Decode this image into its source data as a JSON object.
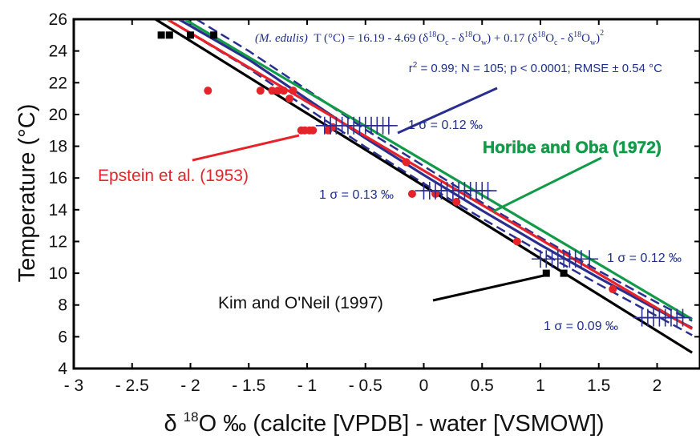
{
  "chart_data": {
    "type": "scatter",
    "xlabel": "δ 18O ‰ (calcite [VPDB] - water [VSMOW])",
    "ylabel": "Temperature (°C)",
    "xlim": [
      -3,
      2.3
    ],
    "ylim": [
      4,
      26
    ],
    "xticks": [
      -3,
      -2.5,
      -2,
      -1.5,
      -1,
      -0.5,
      0,
      0.5,
      1,
      1.5,
      2
    ],
    "xtick_labels": [
      "- 3",
      "- 2.5",
      "- 2",
      "- 1.5",
      "- 1",
      "- 0.5",
      "0",
      "0.5",
      "1",
      "1.5",
      "2"
    ],
    "yticks": [
      4,
      6,
      8,
      10,
      12,
      14,
      16,
      18,
      20,
      22,
      24,
      26
    ],
    "ytick_labels": [
      "4",
      "6",
      "8",
      "10",
      "12",
      "14",
      "16",
      "18",
      "20",
      "22",
      "24",
      "26"
    ],
    "grid": false,
    "series": [
      {
        "name": "M. edulis",
        "kind": "regression",
        "color": "#2a2f8f",
        "x": [
          -2.1,
          -1.5,
          -1.0,
          -0.5,
          0.0,
          0.5,
          1.0,
          1.5,
          2.0,
          2.3
        ],
        "y": [
          26.0,
          23.46,
          20.97,
          18.51,
          16.19,
          13.95,
          11.79,
          9.71,
          7.71,
          6.55
        ]
      },
      {
        "name": "M. edulis 95% band upper",
        "kind": "band",
        "color": "#2a2f8f",
        "x": [
          -1.95,
          -1.5,
          -1.0,
          -0.5,
          0.0,
          0.5,
          1.0,
          1.5,
          2.0,
          2.3
        ],
        "y": [
          26.0,
          24.0,
          21.55,
          19.05,
          16.75,
          14.45,
          12.25,
          10.15,
          8.15,
          7.0
        ]
      },
      {
        "name": "M. edulis 95% band lower",
        "kind": "band",
        "color": "#2a2f8f",
        "x": [
          -2.2,
          -1.5,
          -1.0,
          -0.5,
          0.0,
          0.5,
          1.0,
          1.5,
          2.0,
          2.3
        ],
        "y": [
          26.0,
          22.9,
          20.4,
          17.95,
          15.65,
          13.45,
          11.35,
          9.3,
          7.3,
          6.1
        ]
      },
      {
        "name": "Horibe and Oba (1972)",
        "kind": "line",
        "color": "#129a49",
        "x": [
          -2.05,
          2.3
        ],
        "y": [
          26.0,
          7.1
        ]
      },
      {
        "name": "Epstein et al. (1953)",
        "kind": "line",
        "color": "#e5232a",
        "x": [
          -2.2,
          2.3
        ],
        "y": [
          26.0,
          6.5
        ]
      },
      {
        "name": "Kim and O'Neil (1997)",
        "kind": "line",
        "color": "#000000",
        "x": [
          -2.3,
          2.3
        ],
        "y": [
          26.0,
          5.0
        ]
      },
      {
        "name": "Epstein et al. (1953) data",
        "kind": "points",
        "marker": "circle",
        "color": "#e5232a",
        "x": [
          -1.85,
          -1.4,
          -1.3,
          -1.25,
          -1.2,
          -1.15,
          -1.12,
          -1.05,
          -1.02,
          -0.98,
          -0.95,
          -0.82,
          -0.78,
          -0.15,
          -0.1,
          0.1,
          0.28,
          0.8,
          1.62
        ],
        "y": [
          21.5,
          21.5,
          21.5,
          21.5,
          21.5,
          21.0,
          21.5,
          19.0,
          19.0,
          19.0,
          19.0,
          19.0,
          19.2,
          17.0,
          15.0,
          15.0,
          14.5,
          12.0,
          9.0
        ]
      },
      {
        "name": "Kim and O'Neil (1997) data",
        "kind": "points",
        "marker": "square",
        "color": "#000000",
        "x": [
          -2.25,
          -2.18,
          -2.0,
          -1.8,
          1.05,
          1.2
        ],
        "y": [
          25.0,
          25.0,
          25.0,
          25.0,
          10.0,
          10.0
        ]
      },
      {
        "name": "M. edulis data 19.3 °C",
        "kind": "points",
        "marker": "plus",
        "color": "#2a2f8f",
        "x": [
          -0.85,
          -0.8,
          -0.75,
          -0.7,
          -0.65,
          -0.6,
          -0.55,
          -0.5,
          -0.45,
          -0.4,
          -0.35,
          -0.3
        ],
        "y": [
          19.3,
          19.3,
          19.3,
          19.3,
          19.3,
          19.3,
          19.3,
          19.3,
          19.3,
          19.3,
          19.3,
          19.3
        ]
      },
      {
        "name": "M. edulis data 15.2 °C",
        "kind": "points",
        "marker": "plus",
        "color": "#2a2f8f",
        "x": [
          0.0,
          0.05,
          0.1,
          0.15,
          0.2,
          0.25,
          0.3,
          0.35,
          0.4,
          0.45,
          0.5,
          0.55
        ],
        "y": [
          15.2,
          15.2,
          15.2,
          15.2,
          15.2,
          15.2,
          15.2,
          15.2,
          15.2,
          15.2,
          15.2,
          15.2
        ]
      },
      {
        "name": "M. edulis data 10.9 °C",
        "kind": "points",
        "marker": "plus",
        "color": "#2a2f8f",
        "x": [
          1.0,
          1.05,
          1.1,
          1.15,
          1.2,
          1.25,
          1.3,
          1.35,
          1.42
        ],
        "y": [
          10.9,
          10.9,
          10.9,
          10.9,
          10.9,
          10.9,
          10.9,
          10.9,
          10.9
        ]
      },
      {
        "name": "M. edulis data 7.2 °C",
        "kind": "points",
        "marker": "plus",
        "color": "#2a2f8f",
        "x": [
          1.87,
          1.92,
          1.97,
          2.02,
          2.07,
          2.12,
          2.17,
          2.22
        ],
        "y": [
          7.2,
          7.2,
          7.2,
          7.2,
          7.2,
          7.2,
          7.2,
          7.2
        ]
      }
    ],
    "annotations": [
      {
        "text": "1 σ = 0.12 ‰",
        "x": -0.35,
        "y": 19.3
      },
      {
        "text": "1 σ = 0.13 ‰",
        "x": -0.55,
        "y": 15.2
      },
      {
        "text": "1 σ = 0.12 ‰",
        "x": 1.45,
        "y": 10.9
      },
      {
        "text": "1 σ = 0.09 ‰",
        "x": 1.85,
        "y": 7.0
      }
    ],
    "equation": {
      "name": "(M. edulis)",
      "lead": "T (°C) = 16.19 - 4.69 (δ",
      "o18": "18",
      "o": "O",
      "c": "c",
      "minus": " - δ",
      "w": "w",
      "mid": ") + 0.17 (δ",
      "close": ")",
      "sq": "2",
      "stats_r": "r",
      "stats_rest": " = 0.99; N = 105; p < 0.0001; RMSE ± 0.54 °C"
    },
    "labels": {
      "horibe": "Horibe and Oba (1972)",
      "epstein": "Epstein et al. (1953)",
      "kim": "Kim and O'Neil (1997)"
    },
    "colors": {
      "blue": "#2a2f8f",
      "green": "#129a49",
      "red": "#e5232a",
      "black": "#000000"
    }
  }
}
